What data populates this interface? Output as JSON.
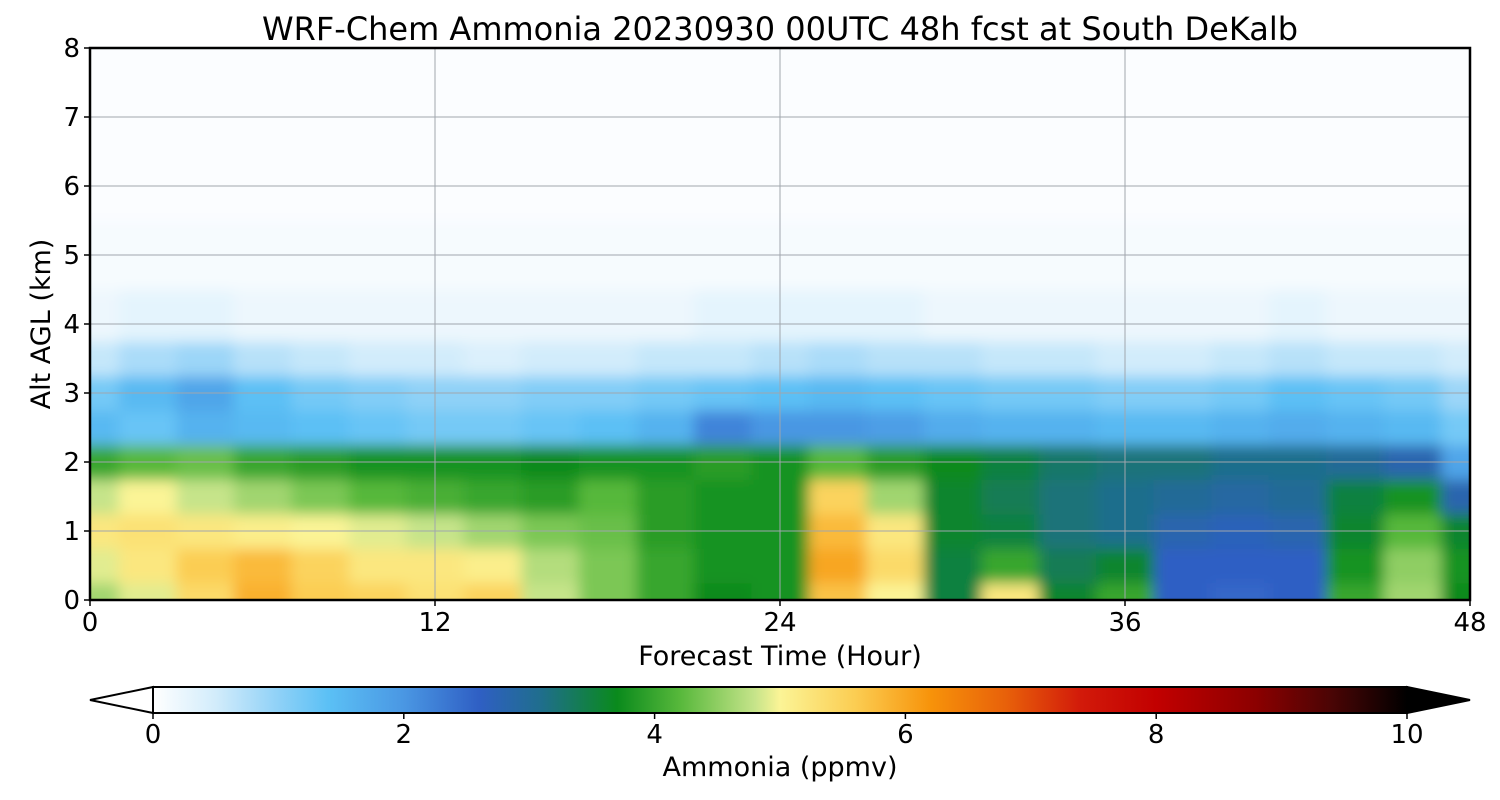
{
  "chart_data": {
    "type": "heatmap",
    "title": "WRF-Chem Ammonia  20230930 00UTC 48h fcst at South DeKalb",
    "xlabel": "Forecast Time (Hour)",
    "ylabel": "Alt AGL (km)",
    "xlim": [
      0,
      48
    ],
    "ylim": [
      0,
      8
    ],
    "x_ticks": [
      0,
      12,
      24,
      36,
      48
    ],
    "y_ticks": [
      0,
      1,
      2,
      3,
      4,
      5,
      6,
      7,
      8
    ],
    "x_tick_labels": [
      "0",
      "12",
      "24",
      "36",
      "48"
    ],
    "y_tick_labels": [
      "0",
      "1",
      "2",
      "3",
      "4",
      "5",
      "6",
      "7",
      "8"
    ],
    "grid": true,
    "x_hours": [
      0,
      2,
      4,
      6,
      8,
      10,
      12,
      14,
      16,
      18,
      20,
      22,
      24,
      26,
      28,
      30,
      32,
      34,
      36,
      38,
      40,
      42,
      44,
      46,
      48
    ],
    "z_km": [
      0,
      0.5,
      1.0,
      1.5,
      2.0,
      2.5,
      3.0,
      3.5,
      4.0,
      5.0,
      6.0,
      7.0,
      8.0
    ],
    "values_ppmv": [
      [
        4.6,
        4.9,
        5.2,
        4.8,
        4.0,
        1.5,
        1.2,
        0.6,
        0.2,
        0.1,
        0.05,
        0.05,
        0.05
      ],
      [
        4.9,
        5.2,
        5.3,
        5.0,
        4.2,
        1.3,
        1.5,
        0.8,
        0.3,
        0.1,
        0.05,
        0.05,
        0.05
      ],
      [
        5.4,
        5.6,
        5.2,
        4.8,
        4.3,
        1.6,
        1.8,
        0.9,
        0.3,
        0.1,
        0.05,
        0.05,
        0.05
      ],
      [
        5.9,
        5.8,
        5.1,
        4.6,
        4.0,
        1.5,
        1.4,
        0.7,
        0.2,
        0.1,
        0.05,
        0.05,
        0.05
      ],
      [
        5.6,
        5.5,
        5.0,
        4.4,
        3.9,
        1.4,
        1.2,
        0.6,
        0.2,
        0.1,
        0.05,
        0.05,
        0.05
      ],
      [
        5.5,
        5.2,
        4.9,
        4.2,
        3.8,
        1.3,
        1.1,
        0.5,
        0.2,
        0.1,
        0.05,
        0.05,
        0.05
      ],
      [
        5.3,
        5.2,
        4.8,
        4.1,
        3.8,
        1.2,
        1.0,
        0.5,
        0.2,
        0.1,
        0.05,
        0.05,
        0.05
      ],
      [
        5.5,
        5.1,
        4.6,
        4.0,
        3.8,
        1.2,
        1.0,
        0.4,
        0.2,
        0.1,
        0.05,
        0.05,
        0.05
      ],
      [
        4.8,
        4.7,
        4.4,
        3.9,
        3.7,
        1.3,
        1.1,
        0.5,
        0.2,
        0.1,
        0.05,
        0.05,
        0.05
      ],
      [
        4.4,
        4.4,
        4.3,
        4.2,
        3.8,
        1.4,
        1.1,
        0.5,
        0.2,
        0.1,
        0.05,
        0.05,
        0.05
      ],
      [
        4.0,
        4.0,
        3.9,
        3.9,
        3.8,
        1.6,
        1.2,
        0.6,
        0.2,
        0.1,
        0.05,
        0.05,
        0.05
      ],
      [
        3.7,
        3.8,
        3.8,
        3.8,
        3.9,
        2.2,
        1.3,
        0.6,
        0.3,
        0.1,
        0.05,
        0.05,
        0.05
      ],
      [
        3.8,
        3.8,
        3.8,
        3.8,
        3.8,
        2.0,
        1.4,
        0.7,
        0.3,
        0.1,
        0.05,
        0.05,
        0.05
      ],
      [
        5.7,
        6.0,
        5.8,
        5.5,
        4.2,
        2.0,
        1.5,
        0.8,
        0.3,
        0.1,
        0.05,
        0.05,
        0.05
      ],
      [
        5.0,
        5.4,
        5.2,
        4.6,
        3.9,
        1.9,
        1.4,
        0.7,
        0.3,
        0.1,
        0.05,
        0.05,
        0.05
      ],
      [
        3.5,
        3.5,
        3.6,
        3.6,
        3.7,
        1.7,
        1.3,
        0.7,
        0.2,
        0.1,
        0.05,
        0.05,
        0.05
      ],
      [
        5.2,
        4.0,
        3.5,
        3.4,
        3.5,
        1.6,
        1.2,
        0.6,
        0.2,
        0.1,
        0.05,
        0.05,
        0.05
      ],
      [
        3.6,
        3.4,
        3.2,
        3.2,
        3.3,
        1.6,
        1.2,
        0.6,
        0.2,
        0.1,
        0.05,
        0.05,
        0.05
      ],
      [
        4.0,
        3.6,
        3.1,
        3.1,
        3.2,
        1.5,
        1.1,
        0.5,
        0.2,
        0.1,
        0.05,
        0.05,
        0.05
      ],
      [
        2.6,
        2.6,
        2.8,
        3.0,
        3.2,
        1.5,
        1.1,
        0.5,
        0.2,
        0.1,
        0.05,
        0.05,
        0.05
      ],
      [
        2.5,
        2.6,
        2.7,
        2.9,
        3.1,
        1.6,
        1.2,
        0.6,
        0.2,
        0.1,
        0.05,
        0.05,
        0.05
      ],
      [
        2.6,
        2.6,
        2.8,
        3.0,
        3.1,
        1.7,
        1.4,
        0.7,
        0.3,
        0.1,
        0.05,
        0.05,
        0.05
      ],
      [
        4.0,
        3.8,
        3.6,
        3.5,
        3.0,
        1.6,
        1.3,
        0.6,
        0.2,
        0.1,
        0.05,
        0.05,
        0.05
      ],
      [
        4.6,
        4.5,
        4.2,
        3.8,
        2.8,
        1.5,
        1.2,
        0.6,
        0.2,
        0.1,
        0.05,
        0.05,
        0.05
      ],
      [
        3.7,
        3.8,
        3.6,
        2.8,
        1.8,
        1.2,
        0.9,
        0.5,
        0.2,
        0.1,
        0.05,
        0.05,
        0.05
      ]
    ],
    "colorbar": {
      "label": "Ammonia  (ppmv)",
      "min": 0,
      "max": 10,
      "ticks": [
        0,
        2,
        4,
        6,
        8,
        10
      ],
      "tick_labels": [
        "0",
        "2",
        "4",
        "6",
        "8",
        "10"
      ],
      "extend": "both",
      "color_stops": [
        {
          "v": 0.0,
          "c": "#ffffff"
        },
        {
          "v": 0.5,
          "c": "#d2ecfb"
        },
        {
          "v": 1.0,
          "c": "#8fd1f7"
        },
        {
          "v": 1.4,
          "c": "#5bc0f5"
        },
        {
          "v": 2.0,
          "c": "#4a97e3"
        },
        {
          "v": 2.6,
          "c": "#2f5fc4"
        },
        {
          "v": 3.1,
          "c": "#1f6e8c"
        },
        {
          "v": 3.7,
          "c": "#0a8a1c"
        },
        {
          "v": 4.2,
          "c": "#57b83b"
        },
        {
          "v": 4.8,
          "c": "#c6e48a"
        },
        {
          "v": 5.0,
          "c": "#fbf496"
        },
        {
          "v": 5.6,
          "c": "#fbcd52"
        },
        {
          "v": 6.2,
          "c": "#f7930a"
        },
        {
          "v": 6.8,
          "c": "#e8610a"
        },
        {
          "v": 7.4,
          "c": "#d21a0a"
        },
        {
          "v": 8.0,
          "c": "#c20000"
        },
        {
          "v": 8.8,
          "c": "#8b0000"
        },
        {
          "v": 9.4,
          "c": "#4a0505"
        },
        {
          "v": 10.0,
          "c": "#000000"
        }
      ],
      "under_color": "#ffffff",
      "over_color": "#000000"
    }
  }
}
